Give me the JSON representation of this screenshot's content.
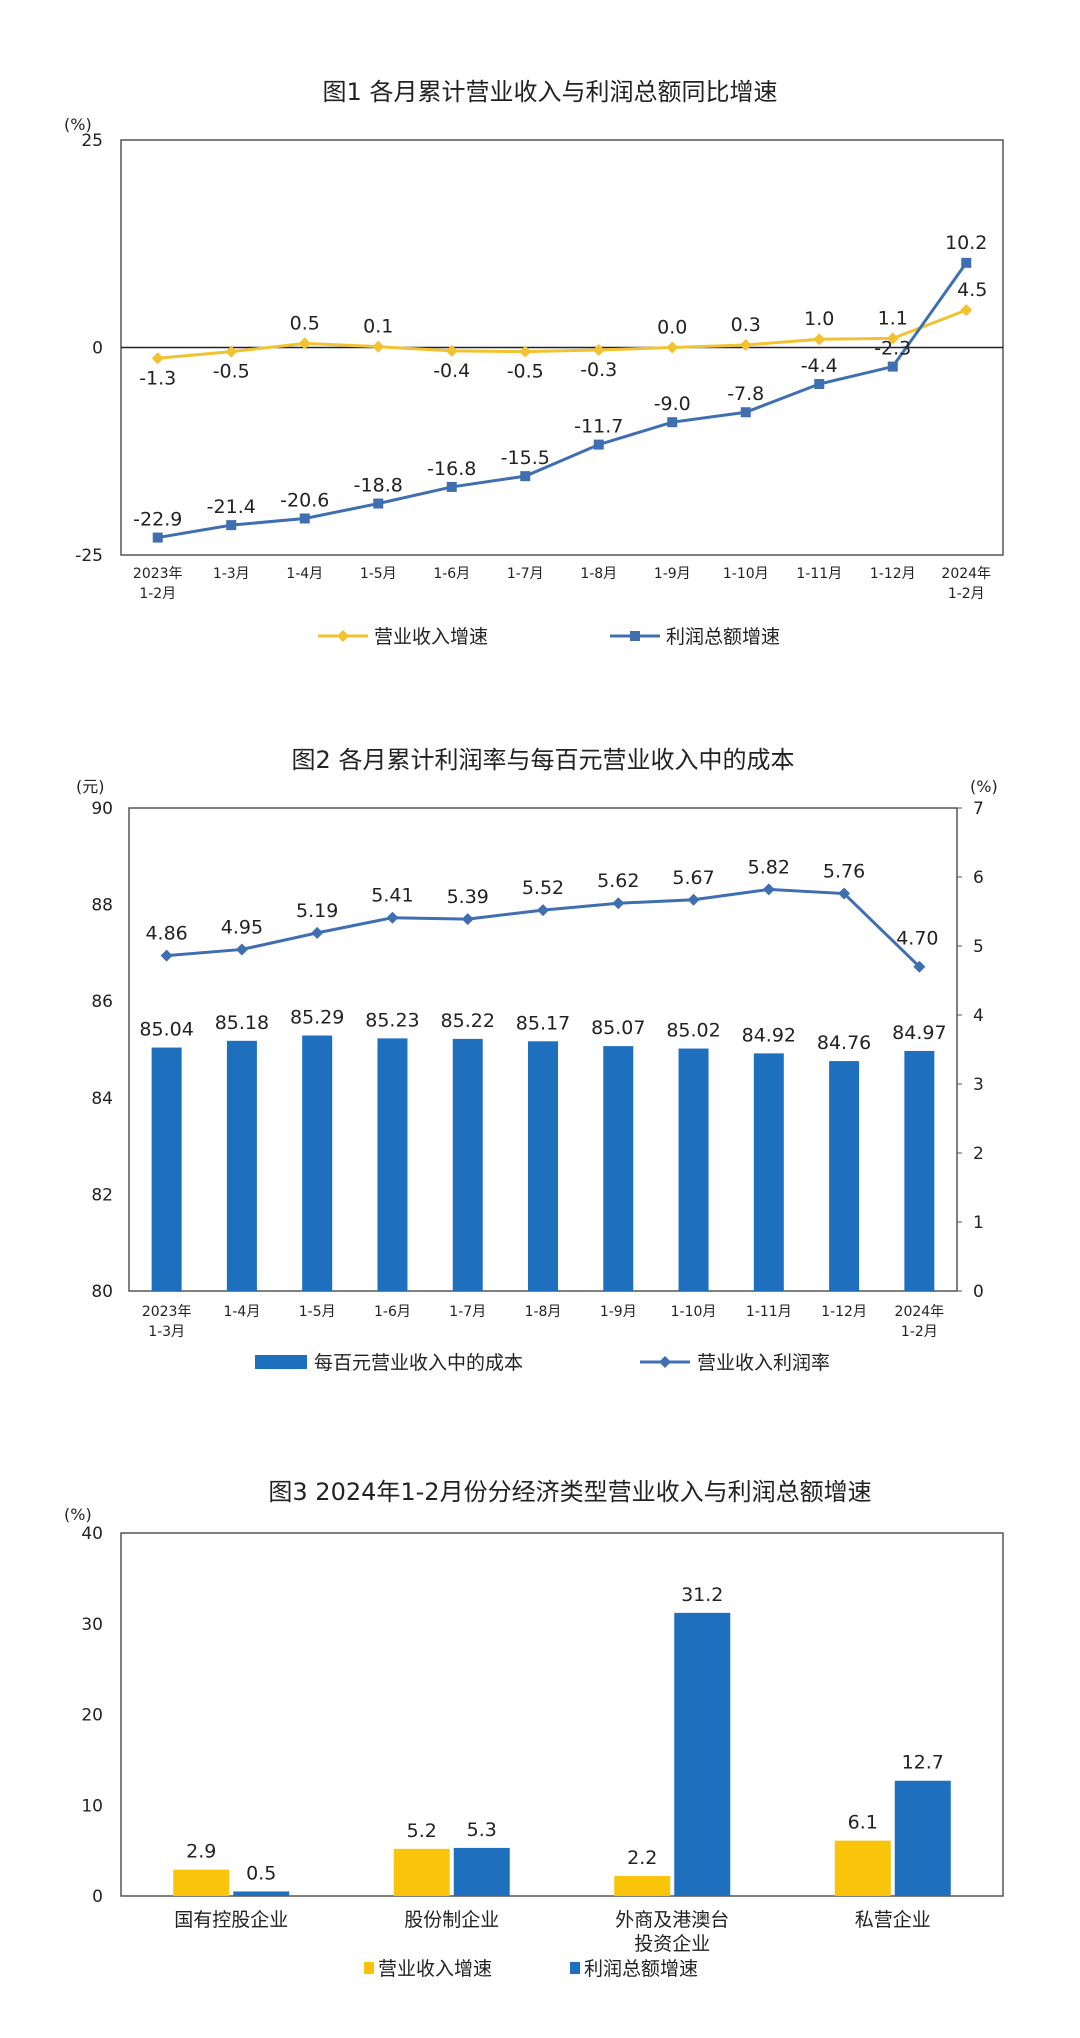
{
  "chart_data": [
    {
      "type": "line",
      "title": "图1  各月累计营业收入与利润总额同比增速",
      "ylabel": "(%)",
      "ylim": [
        -25,
        25
      ],
      "y_ticks": [
        "25",
        "0",
        "-25"
      ],
      "categories": [
        "2023年 1-2月",
        "1-3月",
        "1-4月",
        "1-5月",
        "1-6月",
        "1-7月",
        "1-8月",
        "1-9月",
        "1-10月",
        "1-11月",
        "1-12月",
        "2024年 1-2月"
      ],
      "category_lines": [
        [
          "2023年",
          "1-2月"
        ],
        [
          "1-3月"
        ],
        [
          "1-4月"
        ],
        [
          "1-5月"
        ],
        [
          "1-6月"
        ],
        [
          "1-7月"
        ],
        [
          "1-8月"
        ],
        [
          "1-9月"
        ],
        [
          "1-10月"
        ],
        [
          "1-11月"
        ],
        [
          "1-12月"
        ],
        [
          "2024年",
          "1-2月"
        ]
      ],
      "series": [
        {
          "name": "营业收入增速",
          "color": "#F2C230",
          "marker": "diamond",
          "values": [
            -1.3,
            -0.5,
            0.5,
            0.1,
            -0.4,
            -0.5,
            -0.3,
            0.0,
            0.3,
            1.0,
            1.1,
            4.5
          ],
          "labels": [
            "-1.3",
            "-0.5",
            "0.5",
            "0.1",
            "-0.4",
            "-0.5",
            "-0.3",
            "0.0",
            "0.3",
            "1.0",
            "1.1",
            "4.5"
          ]
        },
        {
          "name": "利润总额增速",
          "color": "#3F6FB0",
          "marker": "square",
          "values": [
            -22.9,
            -21.4,
            -20.6,
            -18.8,
            -16.8,
            -15.5,
            -11.7,
            -9.0,
            -7.8,
            -4.4,
            -2.3,
            10.2
          ],
          "labels": [
            "-22.9",
            "-21.4",
            "-20.6",
            "-18.8",
            "-16.8",
            "-15.5",
            "-11.7",
            "-9.0",
            "-7.8",
            "-4.4",
            "-2.3",
            "10.2"
          ]
        }
      ],
      "legend": "bottom"
    },
    {
      "type": "bar",
      "title": "图2  各月累计利润率与每百元营业收入中的成本",
      "ylabel": "(元)",
      "y2label": "(%)",
      "ylim": [
        80,
        90
      ],
      "y2lim": [
        0,
        7
      ],
      "y_ticks": [
        "90",
        "88",
        "86",
        "84",
        "82",
        "80"
      ],
      "y2_ticks": [
        "7",
        "6",
        "5",
        "4",
        "3",
        "2",
        "1",
        "0"
      ],
      "categories": [
        "2023年 1-3月",
        "1-4月",
        "1-5月",
        "1-6月",
        "1-7月",
        "1-8月",
        "1-9月",
        "1-10月",
        "1-11月",
        "1-12月",
        "2024年 1-2月"
      ],
      "category_lines": [
        [
          "2023年",
          "1-3月"
        ],
        [
          "1-4月"
        ],
        [
          "1-5月"
        ],
        [
          "1-6月"
        ],
        [
          "1-7月"
        ],
        [
          "1-8月"
        ],
        [
          "1-9月"
        ],
        [
          "1-10月"
        ],
        [
          "1-11月"
        ],
        [
          "1-12月"
        ],
        [
          "2024年",
          "1-2月"
        ]
      ],
      "series": [
        {
          "name": "每百元营业收入中的成本",
          "type": "bar",
          "axis": "left",
          "color": "#1F6FBF",
          "values": [
            85.04,
            85.18,
            85.29,
            85.23,
            85.22,
            85.17,
            85.07,
            85.02,
            84.92,
            84.76,
            84.97
          ],
          "labels": [
            "85.04",
            "85.18",
            "85.29",
            "85.23",
            "85.22",
            "85.17",
            "85.07",
            "85.02",
            "84.92",
            "84.76",
            "84.97"
          ]
        },
        {
          "name": "营业收入利润率",
          "type": "line",
          "axis": "right",
          "color": "#3F6FB0",
          "values": [
            4.86,
            4.95,
            5.19,
            5.41,
            5.39,
            5.52,
            5.62,
            5.67,
            5.82,
            5.76,
            4.7
          ],
          "labels": [
            "4.86",
            "4.95",
            "5.19",
            "5.41",
            "5.39",
            "5.52",
            "5.62",
            "5.67",
            "5.82",
            "5.76",
            "4.70"
          ]
        }
      ],
      "legend": "bottom"
    },
    {
      "type": "bar",
      "title": "图3  2024年1-2月份分经济类型营业收入与利润总额增速",
      "ylabel": "(%)",
      "ylim": [
        0,
        40
      ],
      "y_ticks": [
        "40",
        "30",
        "20",
        "10",
        "0"
      ],
      "categories": [
        "国有控股企业",
        "股份制企业",
        "外商及港澳台投资企业",
        "私营企业"
      ],
      "category_lines": [
        [
          "国有控股企业"
        ],
        [
          "股份制企业"
        ],
        [
          "外商及港澳台",
          "投资企业"
        ],
        [
          "私营企业"
        ]
      ],
      "series": [
        {
          "name": "营业收入增速",
          "color": "#F9C40A",
          "values": [
            2.9,
            5.2,
            2.2,
            6.1
          ],
          "labels": [
            "2.9",
            "5.2",
            "2.2",
            "6.1"
          ]
        },
        {
          "name": "利润总额增速",
          "color": "#1F6FBF",
          "values": [
            0.5,
            5.3,
            31.2,
            12.7
          ],
          "labels": [
            "0.5",
            "5.3",
            "31.2",
            "12.7"
          ]
        }
      ],
      "legend": "bottom"
    }
  ]
}
